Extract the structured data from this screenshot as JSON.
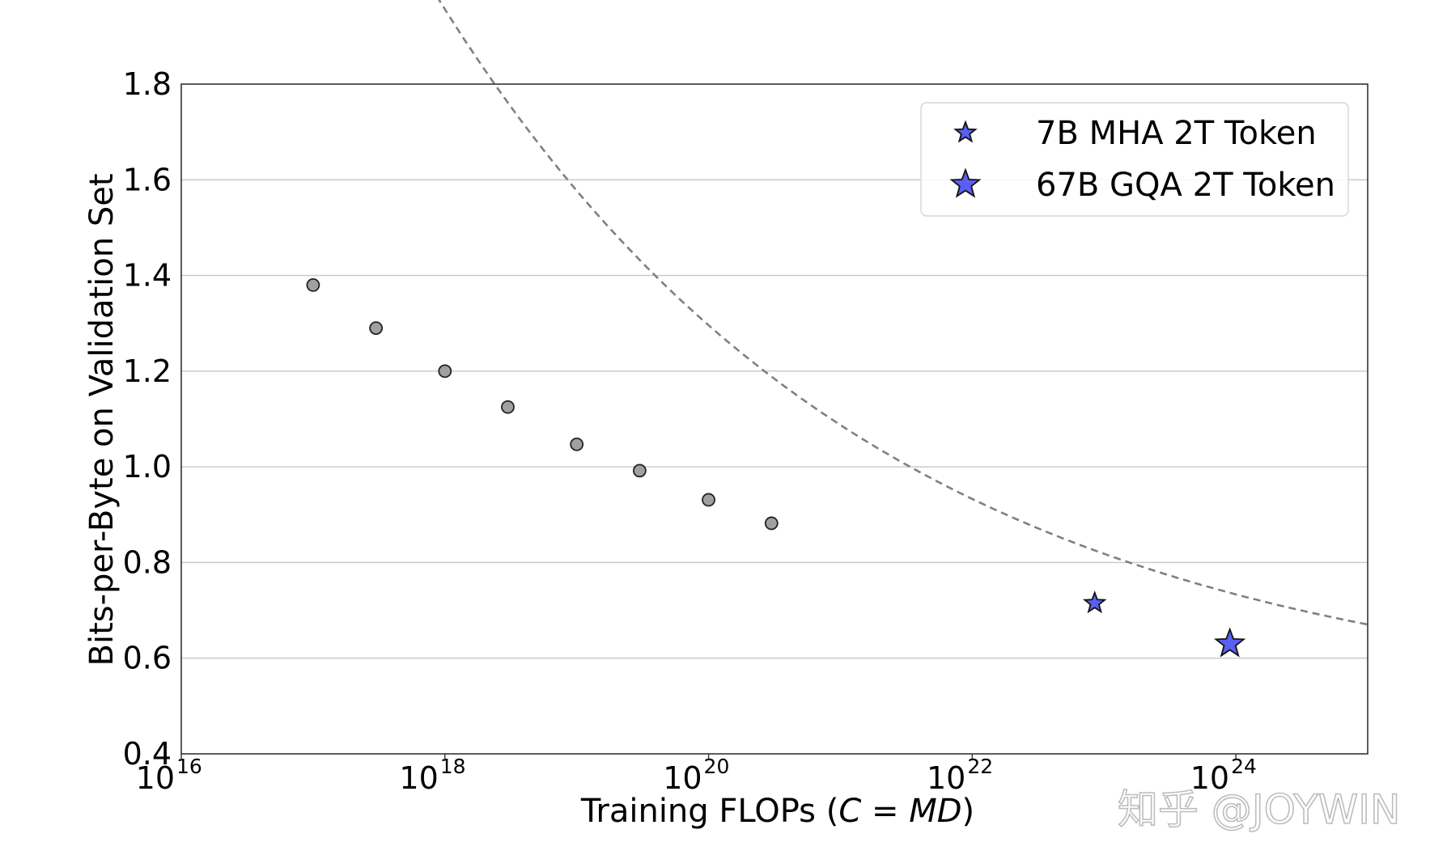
{
  "chart_data": {
    "type": "scatter",
    "xscale": "log",
    "xlim": [
      1e+16,
      1e+25
    ],
    "ylim": [
      0.4,
      1.8
    ],
    "grid": "horizontal",
    "xlabel_prefix": "Training FLOPs (",
    "xlabel_var1": "C",
    "xlabel_eq": " = ",
    "xlabel_var2": "MD",
    "xlabel_suffix": ")",
    "ylabel": "Bits-per-Byte on Validation Set",
    "x_ticks": [
      {
        "base": "10",
        "exp": "16",
        "value": 1e+16
      },
      {
        "base": "10",
        "exp": "18",
        "value": 1e+18
      },
      {
        "base": "10",
        "exp": "20",
        "value": 1e+20
      },
      {
        "base": "10",
        "exp": "22",
        "value": 1e+22
      },
      {
        "base": "10",
        "exp": "24",
        "value": 1e+24
      }
    ],
    "y_ticks": [
      "0.4",
      "0.6",
      "0.8",
      "1.0",
      "1.2",
      "1.4",
      "1.6",
      "1.8"
    ],
    "fit_curve": {
      "style": "dashed",
      "color": "#808080",
      "formula": "L = 0.49 + 3.6 * (C/1e15)^-0.13"
    },
    "small_models": {
      "color": "#a0a0a0",
      "points": [
        {
          "x": 1e+17,
          "y": 1.38
        },
        {
          "x": 3e+17,
          "y": 1.29
        },
        {
          "x": 1e+18,
          "y": 1.2
        },
        {
          "x": 3e+18,
          "y": 1.125
        },
        {
          "x": 1e+19,
          "y": 1.047
        },
        {
          "x": 3e+19,
          "y": 0.992
        },
        {
          "x": 1e+20,
          "y": 0.931
        },
        {
          "x": 3e+20,
          "y": 0.882
        }
      ]
    },
    "series": [
      {
        "name": "7B MHA 2T Token",
        "marker": "star",
        "size": "small",
        "color": "#5a5ff0",
        "x": 8.5e+22,
        "y": 0.715
      },
      {
        "name": "67B GQA 2T Token",
        "marker": "star",
        "size": "large",
        "color": "#5a5ff0",
        "x": 9e+23,
        "y": 0.63
      }
    ],
    "legend": "top-right"
  },
  "watermark": "知乎 @JOYWIN"
}
